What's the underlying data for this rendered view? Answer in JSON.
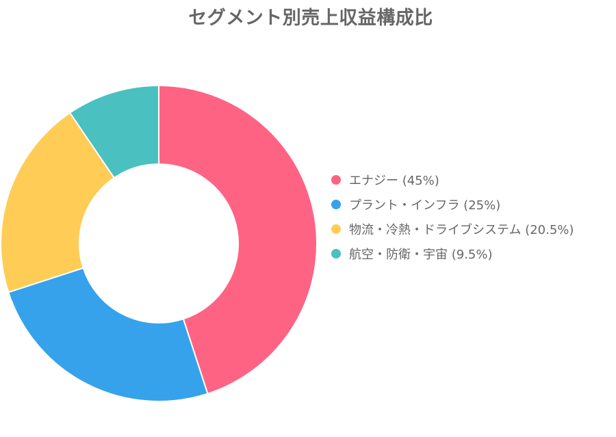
{
  "chart_data": {
    "type": "pie",
    "style": "donut",
    "title": "セグメント別売上収益構成比",
    "categories": [
      "エナジー",
      "プラント・インフラ",
      "物流・冷熱・ドライブシステム",
      "航空・防衛・宇宙"
    ],
    "values": [
      45,
      25,
      20.5,
      9.5
    ],
    "unit": "%",
    "colors": [
      "#ff6384",
      "#36a2eb",
      "#ffcd56",
      "#4bc0c0"
    ],
    "legend_position": "right"
  },
  "legend": {
    "items": [
      {
        "label": "エナジー (45%)",
        "color": "#ff6384"
      },
      {
        "label": "プラント・インフラ (25%)",
        "color": "#36a2eb"
      },
      {
        "label": "物流・冷熱・ドライブシステム (20.5%)",
        "color": "#ffcd56"
      },
      {
        "label": "航空・防衛・宇宙 (9.5%)",
        "color": "#4bc0c0"
      }
    ]
  }
}
